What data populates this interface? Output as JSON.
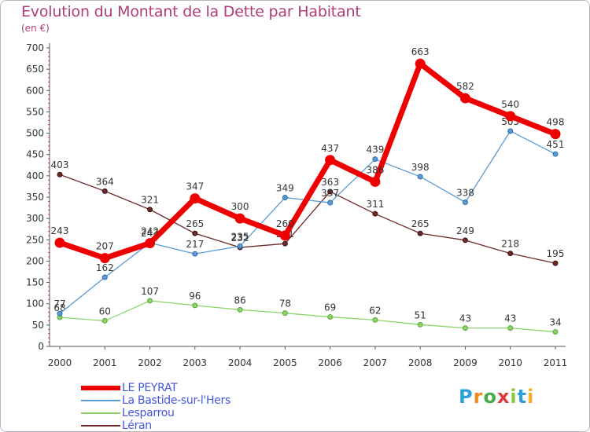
{
  "title": "Evolution du Montant de la Dette par Habitant",
  "unit": "(en €)",
  "logo": "Proxiti",
  "chart_data": {
    "type": "line",
    "x": [
      "2000",
      "2001",
      "2002",
      "2003",
      "2004",
      "2005",
      "2006",
      "2007",
      "2008",
      "2009",
      "2010",
      "2011"
    ],
    "ylim": [
      0,
      700
    ],
    "yticks": [
      0,
      50,
      100,
      150,
      200,
      250,
      300,
      350,
      400,
      450,
      500,
      550,
      600,
      650,
      700
    ],
    "grid": false,
    "legend": "bottom-left",
    "series": [
      {
        "name": "LE PEYRAT",
        "color": "#ee0000",
        "values": [
          243,
          207,
          242,
          347,
          300,
          260,
          437,
          386,
          663,
          582,
          540,
          498
        ]
      },
      {
        "name": "La Bastide-sur-l'Hers",
        "color": "#5b9bd5",
        "values": [
          77,
          162,
          243,
          217,
          235,
          349,
          337,
          439,
          398,
          338,
          505,
          451
        ]
      },
      {
        "name": "Lesparrou",
        "color": "#8cd36a",
        "values": [
          68,
          60,
          107,
          96,
          86,
          78,
          69,
          62,
          51,
          43,
          43,
          34
        ]
      },
      {
        "name": "Léran",
        "color": "#6b2a2a",
        "values": [
          403,
          364,
          321,
          265,
          232,
          241,
          363,
          311,
          265,
          249,
          218,
          195
        ]
      }
    ]
  }
}
